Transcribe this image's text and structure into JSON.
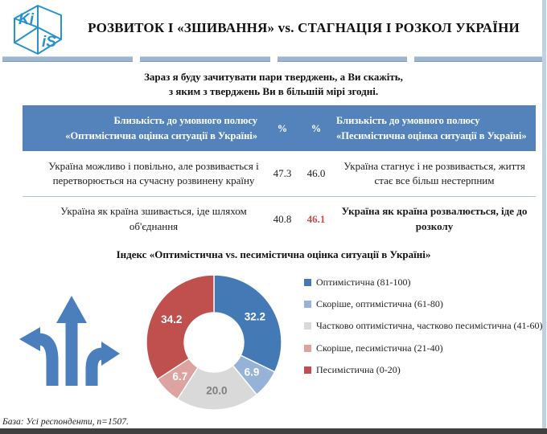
{
  "header": {
    "title": "РОЗВИТОК І «ЗШИВАННЯ» vs. СТАГНАЦІЯ І РОЗКОЛ УКРАЇНИ",
    "logo_top": "Ki",
    "logo_bottom": "iS"
  },
  "subtitle": {
    "line1": "Зараз я буду зачитувати пари тверджень, а Ви скажіть,",
    "line2": "з яким з тверджень Ви в більшій мірі згодні."
  },
  "table": {
    "header": {
      "left": "Близькість до умовного полюсу «Оптимістична оцінка ситуації в Україні»",
      "pct1": "%",
      "pct2": "%",
      "right": "Близькість до умовного полюсу «Песимістична оцінка ситуації в Україні»"
    },
    "rows": [
      {
        "left": "Україна можливо і повільно, але розвивається і перетворюється на сучасну розвинену країну",
        "val1": "47.3",
        "val2": "46.0",
        "right": "Україна стагнує і не розвивається, життя стає все більш нестерпним",
        "highlight": false
      },
      {
        "left": "Україна як країна зшивається, іде шляхом об'єднання",
        "val1": "40.8",
        "val2": "46.1",
        "right": "Україна як країна розвалюється, іде до розколу",
        "highlight": true
      }
    ]
  },
  "chart_data": {
    "type": "pie",
    "donut": true,
    "title": "Індекс «Оптимістична vs. песимістична оцінка ситуації в Україні»",
    "labels": [
      "Оптимістична (81-100)",
      "Скоріше, оптимістична (61-80)",
      "Частково оптимістична, частково песимістична (41-60)",
      "Скоріше, песимістична (21-40)",
      "Песимістична (0-20)"
    ],
    "values": [
      32.2,
      6.9,
      20.0,
      6.7,
      34.2
    ],
    "colors": [
      "#437ab5",
      "#96b3d7",
      "#d9d9d9",
      "#dda3a1",
      "#c0504d"
    ],
    "label_colors": [
      "#ffffff",
      "#ffffff",
      "#7f7f7f",
      "#ffffff",
      "#ffffff"
    ],
    "start_angle": 0,
    "direction": "clockwise",
    "legend_position": "right"
  },
  "footer": {
    "base_note": "База: Усі респонденти, n=1507."
  },
  "colors": {
    "table_header_bg": "#5383ba",
    "accent_red": "#c0504d",
    "divider_bar": "#9db5cd",
    "bottom_bar": "#404040",
    "logo_blue": "#2892d0",
    "arrows_blue": "#4a7ebc"
  }
}
